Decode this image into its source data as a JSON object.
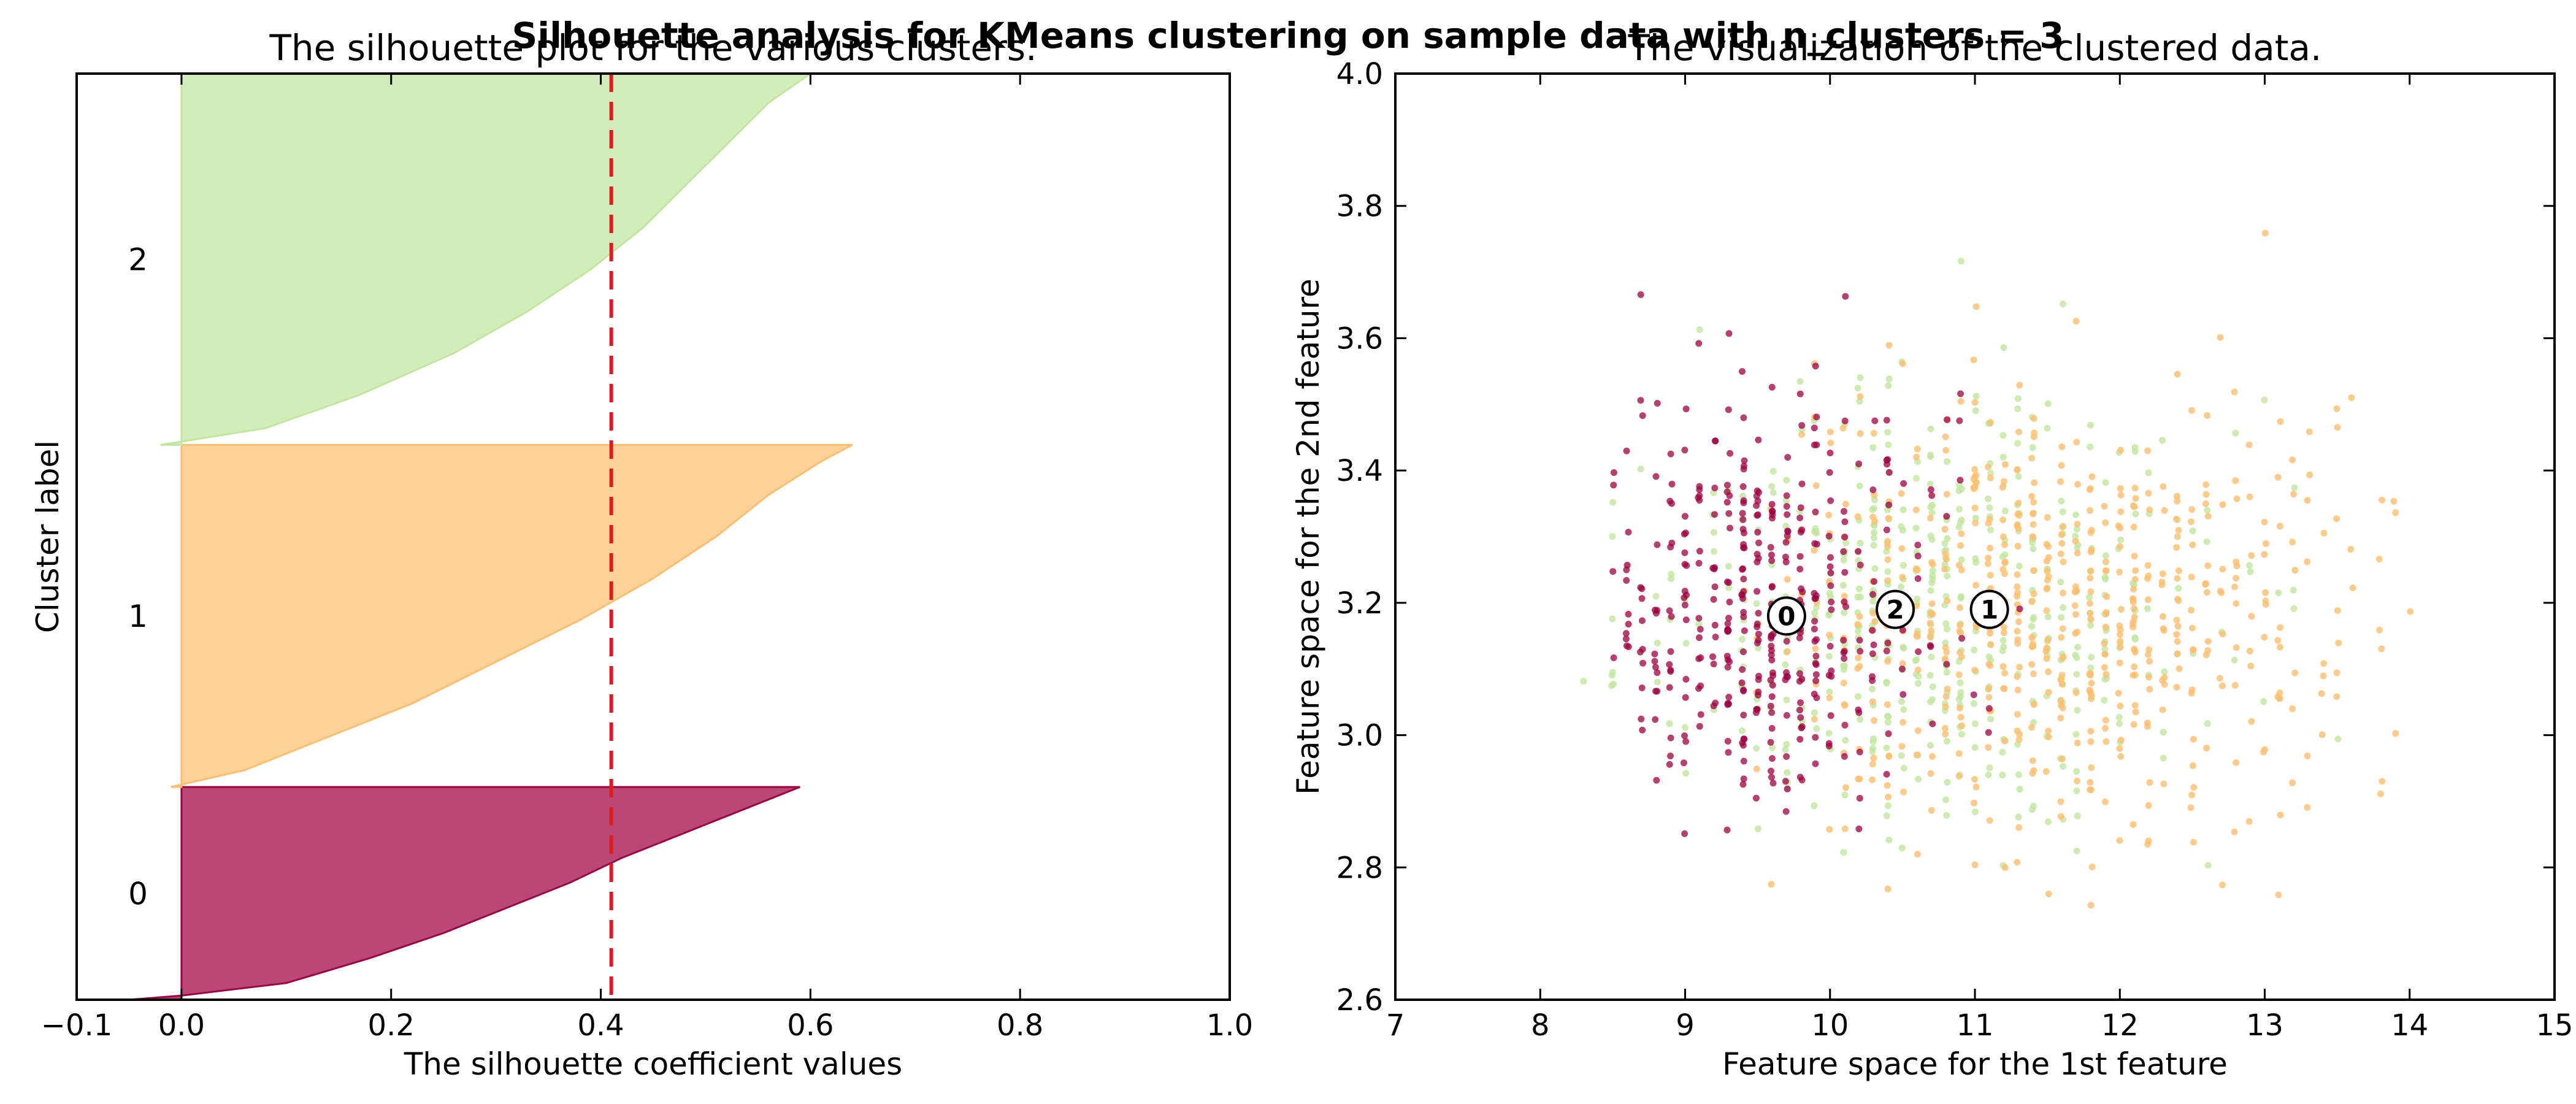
{
  "suptitle": "Silhouette analysis for KMeans clustering on sample data with n_clusters = 3",
  "colors": {
    "cluster_0": "#9e0142",
    "cluster_1": "#fdbf6f",
    "cluster_2": "#c2e69f",
    "average_line": "#e31a1c"
  },
  "chart_data": [
    {
      "type": "area",
      "title": "The silhouette plot for the various clusters.",
      "xlabel": "The silhouette coefficient values",
      "ylabel": "Cluster label",
      "xlim": [
        -0.1,
        1.0
      ],
      "xticks": [
        "−0.1",
        "0.0",
        "0.2",
        "0.4",
        "0.6",
        "0.8",
        "1.0"
      ],
      "ylim": [
        0,
        1110
      ],
      "average_silhouette": 0.41,
      "clusters": [
        {
          "label": "0",
          "y_range": [
            0,
            255
          ],
          "min_value": -0.05,
          "max_value": 0.59,
          "profile": [
            [
              0,
              -0.05
            ],
            [
              5,
              0.0
            ],
            [
              20,
              0.1
            ],
            [
              50,
              0.18
            ],
            [
              80,
              0.25
            ],
            [
              110,
              0.31
            ],
            [
              140,
              0.37
            ],
            [
              170,
              0.42
            ],
            [
              200,
              0.48
            ],
            [
              225,
              0.53
            ],
            [
              245,
              0.57
            ],
            [
              255,
              0.59
            ]
          ]
        },
        {
          "label": "1",
          "y_range": [
            255,
            665
          ],
          "min_value": -0.01,
          "max_value": 0.64,
          "profile": [
            [
              0,
              -0.01
            ],
            [
              20,
              0.06
            ],
            [
              60,
              0.14
            ],
            [
              100,
              0.22
            ],
            [
              150,
              0.3
            ],
            [
              200,
              0.38
            ],
            [
              250,
              0.45
            ],
            [
              300,
              0.51
            ],
            [
              350,
              0.56
            ],
            [
              390,
              0.61
            ],
            [
              410,
              0.64
            ]
          ]
        },
        {
          "label": "2",
          "y_range": [
            665,
            1110
          ],
          "min_value": -0.02,
          "max_value": 0.6,
          "profile": [
            [
              0,
              -0.02
            ],
            [
              20,
              0.08
            ],
            [
              60,
              0.17
            ],
            [
              110,
              0.26
            ],
            [
              160,
              0.33
            ],
            [
              210,
              0.39
            ],
            [
              260,
              0.44
            ],
            [
              310,
              0.48
            ],
            [
              360,
              0.52
            ],
            [
              410,
              0.56
            ],
            [
              445,
              0.6
            ]
          ]
        }
      ]
    },
    {
      "type": "scatter",
      "title": "The visualization of the clustered data.",
      "xlabel": "Feature space for the 1st feature",
      "ylabel": "Feature space for the 2nd feature",
      "xlim": [
        7,
        15
      ],
      "ylim": [
        2.6,
        4.0
      ],
      "xticks": [
        "7",
        "8",
        "9",
        "10",
        "11",
        "12",
        "13",
        "14",
        "15"
      ],
      "yticks": [
        "2.6",
        "2.8",
        "3.0",
        "3.2",
        "3.4",
        "3.6",
        "3.8",
        "4.0"
      ],
      "centers": [
        {
          "label": "0",
          "x": 9.7,
          "y": 3.18
        },
        {
          "label": "1",
          "x": 11.1,
          "y": 3.19
        },
        {
          "label": "2",
          "x": 10.45,
          "y": 3.19
        }
      ],
      "clusters": [
        {
          "label": "0",
          "center_x": 9.55,
          "center_y": 3.18,
          "spread_x": 0.55,
          "spread_y": 0.17,
          "n": 420,
          "x_range": [
            8.5,
            11.6
          ],
          "y_range": [
            2.85,
            3.8
          ]
        },
        {
          "label": "1",
          "center_x": 11.6,
          "center_y": 3.18,
          "spread_x": 1.05,
          "spread_y": 0.17,
          "n": 620,
          "x_range": [
            9.4,
            14.2
          ],
          "y_range": [
            2.74,
            3.76
          ]
        },
        {
          "label": "2",
          "center_x": 10.6,
          "center_y": 3.18,
          "spread_x": 1.0,
          "spread_y": 0.17,
          "n": 520,
          "x_range": [
            8.0,
            13.6
          ],
          "y_range": [
            2.8,
            3.8
          ]
        }
      ]
    }
  ]
}
